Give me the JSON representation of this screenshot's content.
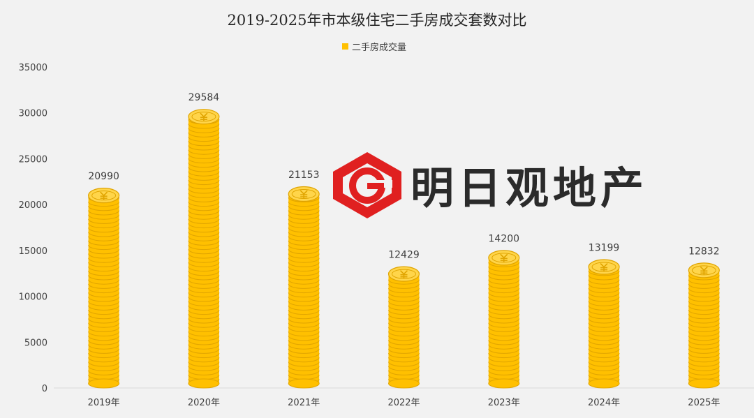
{
  "chart_data": {
    "type": "bar",
    "title": "2019-2025年市本级住宅二手房成交套数对比",
    "categories": [
      "2019年",
      "2020年",
      "2021年",
      "2022年",
      "2023年",
      "2024年",
      "2025年"
    ],
    "series": [
      {
        "name": "二手房成交量",
        "values": [
          20990,
          29584,
          21153,
          12429,
          14200,
          13199,
          12832
        ]
      }
    ],
    "ylim": [
      0,
      35000
    ],
    "yticks": [
      0,
      5000,
      10000,
      15000,
      20000,
      25000,
      30000,
      35000
    ],
    "grid": false,
    "legend": "top-center",
    "bar_style": "stacked-coins"
  },
  "colors": {
    "coin_face": "#ffc000",
    "coin_edge": "#e0a400",
    "coin_top": "#ffd54a",
    "background": "#f2f2f2",
    "logo_red": "#e02020",
    "logo_text": "#2b2b2b"
  },
  "watermark": {
    "text": "明日观地产",
    "icon": "hexagon-g-logo-icon"
  }
}
